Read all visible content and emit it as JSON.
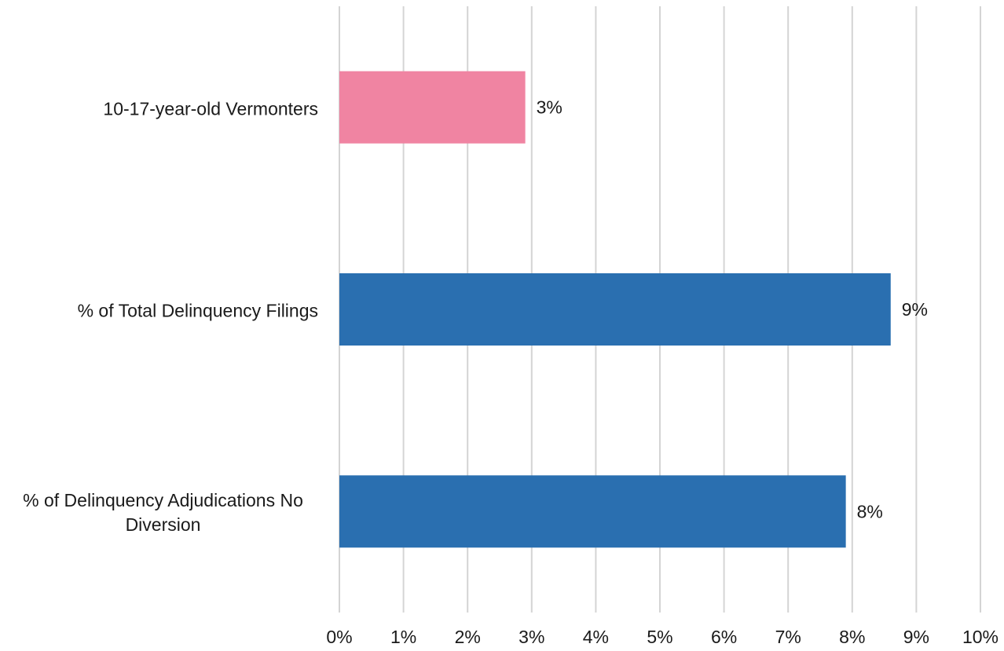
{
  "chart_data": {
    "type": "bar",
    "orientation": "horizontal",
    "categories": [
      "10-17-year-old Vermonters",
      "% of Total Delinquency Filings",
      "% of Delinquency Adjudications No Diversion"
    ],
    "values": [
      2.9,
      8.6,
      7.9
    ],
    "value_labels": [
      "3%",
      "9%",
      "8%"
    ],
    "colors": [
      "#f084a2",
      "#2a6fb0",
      "#2a6fb0"
    ],
    "xlim": [
      0,
      10
    ],
    "xticks": [
      {
        "value": 0,
        "label": "0%"
      },
      {
        "value": 1,
        "label": "1%"
      },
      {
        "value": 2,
        "label": "2%"
      },
      {
        "value": 3,
        "label": "3%"
      },
      {
        "value": 4,
        "label": "4%"
      },
      {
        "value": 5,
        "label": "5%"
      },
      {
        "value": 6,
        "label": "6%"
      },
      {
        "value": 7,
        "label": "7%"
      },
      {
        "value": 8,
        "label": "8%"
      },
      {
        "value": 9,
        "label": "9%"
      },
      {
        "value": 10,
        "label": "10%"
      }
    ],
    "grid": true
  }
}
